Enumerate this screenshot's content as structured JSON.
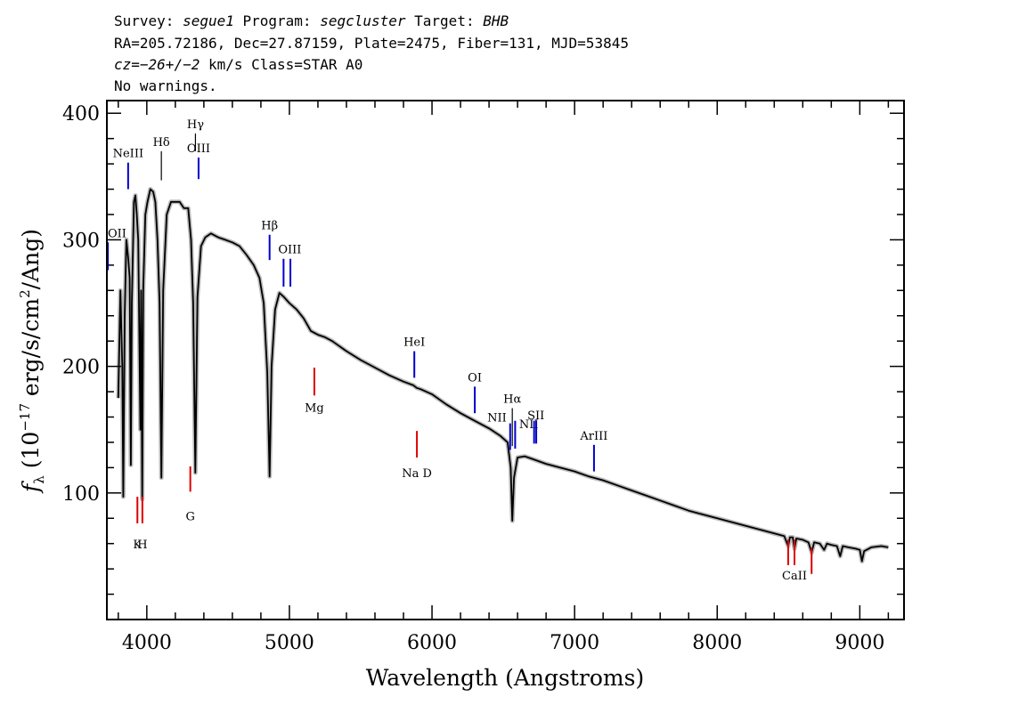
{
  "header": {
    "line1": {
      "pre1": "Survey: ",
      "survey": "segue1",
      "pre2": " Program: ",
      "program": "segcluster",
      "pre3": " Target: ",
      "target": "BHB"
    },
    "line2": "RA=205.72186, Dec=27.87159, Plate=2475, Fiber=131, MJD=53845",
    "line3": {
      "cz_label": "cz=",
      "cz_value": "−26+/−2",
      "rest": " km/s Class=STAR A0"
    },
    "line4": "No warnings."
  },
  "chart_data": {
    "type": "line",
    "xlabel": "Wavelength (Angstroms)",
    "ylabel": "f_λ (10^-17 erg/s/cm^2/Ang)",
    "xlim": [
      3720,
      9310
    ],
    "ylim": [
      0,
      410
    ],
    "x_ticks": [
      4000,
      5000,
      6000,
      7000,
      8000,
      9000
    ],
    "y_ticks": [
      100,
      200,
      300,
      400
    ],
    "x_minor_step": 200,
    "y_minor_step": 20,
    "grid": false,
    "colors": {
      "flux": "#000000",
      "error_band": "#bbbbbb",
      "emission": "#0000cc",
      "absorption": "#dd0000"
    },
    "series": [
      {
        "name": "flux",
        "points": [
          [
            3800,
            175
          ],
          [
            3815,
            260
          ],
          [
            3828,
            200
          ],
          [
            3835,
            97
          ],
          [
            3845,
            240
          ],
          [
            3857,
            300
          ],
          [
            3870,
            285
          ],
          [
            3880,
            270
          ],
          [
            3888,
            122
          ],
          [
            3895,
            250
          ],
          [
            3910,
            330
          ],
          [
            3920,
            335
          ],
          [
            3930,
            320
          ],
          [
            3940,
            300
          ],
          [
            3950,
            200
          ],
          [
            3955,
            150
          ],
          [
            3960,
            260
          ],
          [
            3968,
            95
          ],
          [
            3975,
            260
          ],
          [
            3990,
            320
          ],
          [
            4005,
            330
          ],
          [
            4025,
            340
          ],
          [
            4045,
            338
          ],
          [
            4060,
            330
          ],
          [
            4075,
            300
          ],
          [
            4090,
            250
          ],
          [
            4102,
            112
          ],
          [
            4115,
            260
          ],
          [
            4140,
            320
          ],
          [
            4170,
            330
          ],
          [
            4200,
            330
          ],
          [
            4230,
            330
          ],
          [
            4260,
            325
          ],
          [
            4290,
            325
          ],
          [
            4310,
            300
          ],
          [
            4325,
            250
          ],
          [
            4340,
            116
          ],
          [
            4355,
            255
          ],
          [
            4380,
            295
          ],
          [
            4410,
            302
          ],
          [
            4450,
            305
          ],
          [
            4500,
            302
          ],
          [
            4550,
            300
          ],
          [
            4600,
            298
          ],
          [
            4650,
            295
          ],
          [
            4700,
            288
          ],
          [
            4750,
            280
          ],
          [
            4790,
            270
          ],
          [
            4820,
            250
          ],
          [
            4845,
            195
          ],
          [
            4861,
            113
          ],
          [
            4875,
            200
          ],
          [
            4900,
            245
          ],
          [
            4930,
            258
          ],
          [
            4960,
            255
          ],
          [
            5000,
            250
          ],
          [
            5050,
            245
          ],
          [
            5100,
            238
          ],
          [
            5150,
            228
          ],
          [
            5200,
            225
          ],
          [
            5250,
            223
          ],
          [
            5300,
            220
          ],
          [
            5400,
            212
          ],
          [
            5500,
            205
          ],
          [
            5600,
            199
          ],
          [
            5700,
            193
          ],
          [
            5800,
            188
          ],
          [
            5870,
            185
          ],
          [
            5893,
            183
          ],
          [
            5920,
            182
          ],
          [
            6000,
            178
          ],
          [
            6100,
            170
          ],
          [
            6200,
            163
          ],
          [
            6300,
            157
          ],
          [
            6400,
            151
          ],
          [
            6480,
            145
          ],
          [
            6530,
            140
          ],
          [
            6552,
            120
          ],
          [
            6563,
            78
          ],
          [
            6575,
            112
          ],
          [
            6600,
            128
          ],
          [
            6650,
            129
          ],
          [
            6700,
            127
          ],
          [
            6800,
            123
          ],
          [
            6900,
            120
          ],
          [
            7000,
            117
          ],
          [
            7100,
            113
          ],
          [
            7200,
            110
          ],
          [
            7300,
            106
          ],
          [
            7400,
            102
          ],
          [
            7500,
            98
          ],
          [
            7600,
            94
          ],
          [
            7700,
            90
          ],
          [
            7800,
            86
          ],
          [
            7900,
            83
          ],
          [
            8000,
            80
          ],
          [
            8100,
            77
          ],
          [
            8200,
            74
          ],
          [
            8300,
            71
          ],
          [
            8400,
            68
          ],
          [
            8470,
            66
          ],
          [
            8498,
            58
          ],
          [
            8510,
            65
          ],
          [
            8530,
            65
          ],
          [
            8542,
            56
          ],
          [
            8555,
            64
          ],
          [
            8600,
            63
          ],
          [
            8640,
            61
          ],
          [
            8662,
            53
          ],
          [
            8680,
            61
          ],
          [
            8720,
            60
          ],
          [
            8750,
            55
          ],
          [
            8770,
            60
          ],
          [
            8800,
            59
          ],
          [
            8840,
            58
          ],
          [
            8862,
            50
          ],
          [
            8880,
            58
          ],
          [
            8920,
            57
          ],
          [
            8970,
            56
          ],
          [
            9000,
            55
          ],
          [
            9015,
            46
          ],
          [
            9030,
            54
          ],
          [
            9080,
            57
          ],
          [
            9150,
            58
          ],
          [
            9200,
            57
          ]
        ]
      }
    ],
    "lines": [
      {
        "label": "OII",
        "wave": 3727,
        "y_low": 276,
        "y_high": 298,
        "color": "blue",
        "label_pos": "top"
      },
      {
        "label": "NeIII",
        "wave": 3869,
        "y_low": 340,
        "y_high": 361,
        "color": "blue",
        "label_pos": "top"
      },
      {
        "label": "Hδ",
        "wave": 4102,
        "y_low": 347,
        "y_high": 370,
        "color": "black",
        "label_pos": "top"
      },
      {
        "label": "Hγ",
        "wave": 4341,
        "y_low": 370,
        "y_high": 384,
        "color": "black",
        "label_pos": "top"
      },
      {
        "label": "OIII",
        "wave": 4363,
        "y_low": 348,
        "y_high": 365,
        "color": "blue",
        "label_pos": "top"
      },
      {
        "label": "Hβ",
        "wave": 4861,
        "y_low": 284,
        "y_high": 304,
        "color": "blue",
        "label_pos": "top"
      },
      {
        "label": "OIII",
        "wave": 4959,
        "y_low": 263,
        "y_high": 285,
        "color": "blue",
        "label_pos": "top"
      },
      {
        "label": "",
        "wave": 5007,
        "y_low": 263,
        "y_high": 285,
        "color": "blue",
        "label_pos": "top"
      },
      {
        "label": "HeI",
        "wave": 5876,
        "y_low": 191,
        "y_high": 212,
        "color": "blue",
        "label_pos": "top"
      },
      {
        "label": "OI",
        "wave": 6300,
        "y_low": 163,
        "y_high": 184,
        "color": "blue",
        "label_pos": "top"
      },
      {
        "label": "NII",
        "wave": 6548,
        "y_low": 134,
        "y_high": 155,
        "color": "blue",
        "label_pos": "top-left"
      },
      {
        "label": "Hα",
        "wave": 6563,
        "y_low": 137,
        "y_high": 167,
        "color": "black",
        "label_pos": "top"
      },
      {
        "label": "",
        "wave": 6583,
        "y_low": 135,
        "y_high": 157,
        "color": "blue",
        "label_pos": "top"
      },
      {
        "label": "NII",
        "wave": 6716,
        "y_low": 139,
        "y_high": 157,
        "color": "blue",
        "label_pos": "top"
      },
      {
        "label": "SII",
        "wave": 6731,
        "y_low": 139,
        "y_high": 157,
        "color": "blue",
        "label_pos": "top"
      },
      {
        "label": "ArIII",
        "wave": 7136,
        "y_low": 117,
        "y_high": 138,
        "color": "blue",
        "label_pos": "top"
      },
      {
        "label": "K",
        "wave": 3934,
        "y_low": 76,
        "y_high": 97,
        "color": "red",
        "label_pos": "bottom"
      },
      {
        "label": "H",
        "wave": 3969,
        "y_low": 76,
        "y_high": 97,
        "color": "red",
        "label_pos": "bottom"
      },
      {
        "label": "G",
        "wave": 4305,
        "y_low": 101,
        "y_high": 121,
        "color": "red",
        "label_pos": "bottom"
      },
      {
        "label": "Mg",
        "wave": 5175,
        "y_low": 177,
        "y_high": 199,
        "color": "red",
        "label_pos": "bottom"
      },
      {
        "label": "Na D",
        "wave": 5894,
        "y_low": 128,
        "y_high": 149,
        "color": "red",
        "label_pos": "bottom"
      },
      {
        "label": "CaII",
        "wave": 8498,
        "y_low": 43,
        "y_high": 63,
        "color": "red",
        "label_pos": "bottom"
      },
      {
        "label": "",
        "wave": 8542,
        "y_low": 43,
        "y_high": 63,
        "color": "red",
        "label_pos": "bottom"
      },
      {
        "label": "",
        "wave": 8662,
        "y_low": 36,
        "y_high": 57,
        "color": "red",
        "label_pos": "bottom"
      }
    ]
  }
}
